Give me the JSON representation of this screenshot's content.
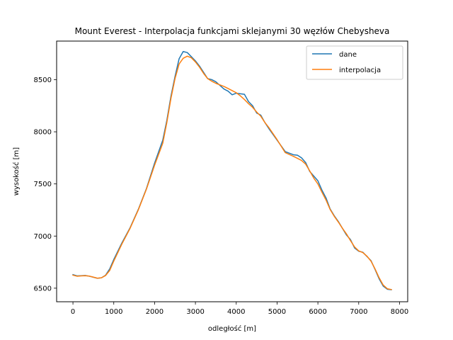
{
  "chart_data": {
    "type": "line",
    "title": "Mount Everest - Interpolacja funkcjami sklejanymi 30 węzłów Chebysheva",
    "xlabel": "odległość [m]",
    "ylabel": "wysokość [m]",
    "xlim": [
      -400,
      8200
    ],
    "ylim": [
      6370,
      8870
    ],
    "xticks": [
      0,
      1000,
      2000,
      3000,
      4000,
      5000,
      6000,
      7000,
      8000
    ],
    "yticks": [
      6500,
      7000,
      7500,
      8000,
      8500
    ],
    "xtick_labels": [
      "0",
      "1000",
      "2000",
      "3000",
      "4000",
      "5000",
      "6000",
      "7000",
      "8000"
    ],
    "ytick_labels": [
      "6500",
      "7000",
      "7500",
      "8000",
      "8500"
    ],
    "grid": false,
    "legend_position": "top-right",
    "series": [
      {
        "name": "dane",
        "color": "#1f77b4",
        "x": [
          0,
          100,
          200,
          300,
          400,
          500,
          600,
          700,
          800,
          900,
          1000,
          1200,
          1400,
          1600,
          1800,
          2000,
          2200,
          2300,
          2400,
          2500,
          2600,
          2700,
          2800,
          2900,
          3000,
          3100,
          3200,
          3300,
          3400,
          3500,
          3600,
          3700,
          3800,
          3900,
          4000,
          4100,
          4200,
          4300,
          4400,
          4500,
          4600,
          4700,
          4800,
          5000,
          5200,
          5400,
          5500,
          5600,
          5700,
          5800,
          5900,
          6000,
          6100,
          6200,
          6300,
          6400,
          6500,
          6600,
          6700,
          6800,
          6900,
          7000,
          7100,
          7200,
          7300,
          7400,
          7500,
          7600,
          7700,
          7800
        ],
        "y": [
          6630,
          6618,
          6620,
          6622,
          6615,
          6605,
          6595,
          6600,
          6625,
          6685,
          6775,
          6935,
          7080,
          7255,
          7455,
          7700,
          7920,
          8110,
          8340,
          8530,
          8700,
          8770,
          8760,
          8720,
          8680,
          8630,
          8570,
          8510,
          8500,
          8480,
          8445,
          8410,
          8390,
          8355,
          8370,
          8365,
          8360,
          8290,
          8250,
          8180,
          8160,
          8090,
          8030,
          7920,
          7810,
          7780,
          7775,
          7750,
          7705,
          7620,
          7575,
          7530,
          7440,
          7365,
          7260,
          7195,
          7140,
          7075,
          7010,
          6965,
          6885,
          6855,
          6845,
          6805,
          6765,
          6680,
          6590,
          6520,
          6490,
          6485
        ]
      },
      {
        "name": "interpolacja",
        "color": "#ff7f0e",
        "x": [
          0,
          100,
          200,
          300,
          400,
          500,
          600,
          700,
          800,
          900,
          1000,
          1200,
          1400,
          1600,
          1800,
          2000,
          2200,
          2300,
          2400,
          2500,
          2600,
          2700,
          2800,
          2900,
          3000,
          3100,
          3200,
          3300,
          3400,
          3500,
          3600,
          3700,
          3800,
          3900,
          4000,
          4100,
          4200,
          4300,
          4400,
          4500,
          4600,
          4700,
          4800,
          5000,
          5200,
          5400,
          5500,
          5600,
          5700,
          5800,
          5900,
          6000,
          6100,
          6200,
          6300,
          6400,
          6500,
          6600,
          6700,
          6800,
          6900,
          7000,
          7100,
          7200,
          7300,
          7400,
          7500,
          7600,
          7700,
          7800
        ],
        "y": [
          6625,
          6615,
          6618,
          6620,
          6616,
          6606,
          6596,
          6600,
          6622,
          6670,
          6760,
          6925,
          7075,
          7250,
          7450,
          7680,
          7890,
          8090,
          8320,
          8510,
          8650,
          8705,
          8725,
          8710,
          8670,
          8620,
          8560,
          8510,
          8485,
          8465,
          8450,
          8435,
          8415,
          8395,
          8375,
          8345,
          8310,
          8270,
          8235,
          8190,
          8150,
          8090,
          8040,
          7925,
          7800,
          7765,
          7745,
          7725,
          7690,
          7625,
          7555,
          7500,
          7420,
          7345,
          7255,
          7190,
          7135,
          7075,
          7020,
          6955,
          6895,
          6858,
          6842,
          6808,
          6760,
          6685,
          6600,
          6530,
          6495,
          6487
        ]
      }
    ]
  }
}
